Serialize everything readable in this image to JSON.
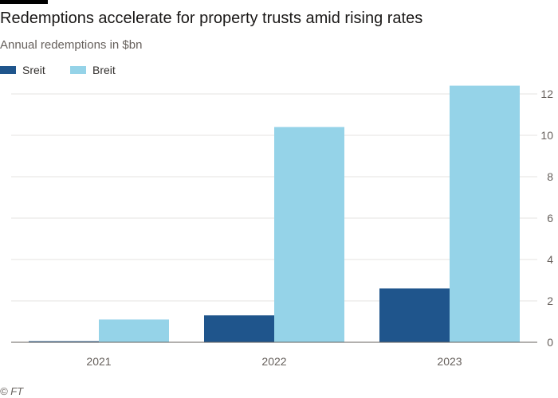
{
  "header": {
    "title": "Redemptions accelerate for property trusts amid rising rates",
    "subtitle": "Annual redemptions in $bn"
  },
  "source": "© FT",
  "colors": {
    "sreit": "#1f558c",
    "breit": "#95d3e8",
    "grid": "#e6e3e0",
    "axis": "#66605c",
    "text": "#33302e"
  },
  "chart_data": {
    "type": "bar",
    "title": "Redemptions accelerate for property trusts amid rising rates",
    "subtitle": "Annual redemptions in $bn",
    "categories": [
      "2021",
      "2022",
      "2023"
    ],
    "series": [
      {
        "name": "Sreit",
        "values": [
          0.05,
          1.3,
          2.6
        ]
      },
      {
        "name": "Breit",
        "values": [
          1.1,
          10.4,
          12.4
        ]
      }
    ],
    "ylim": [
      0,
      12.5
    ],
    "yticks": [
      "0",
      "2",
      "4",
      "6",
      "8",
      "10",
      "12"
    ],
    "y_axis_side": "right",
    "grid": true,
    "legend_position": "top-left"
  }
}
